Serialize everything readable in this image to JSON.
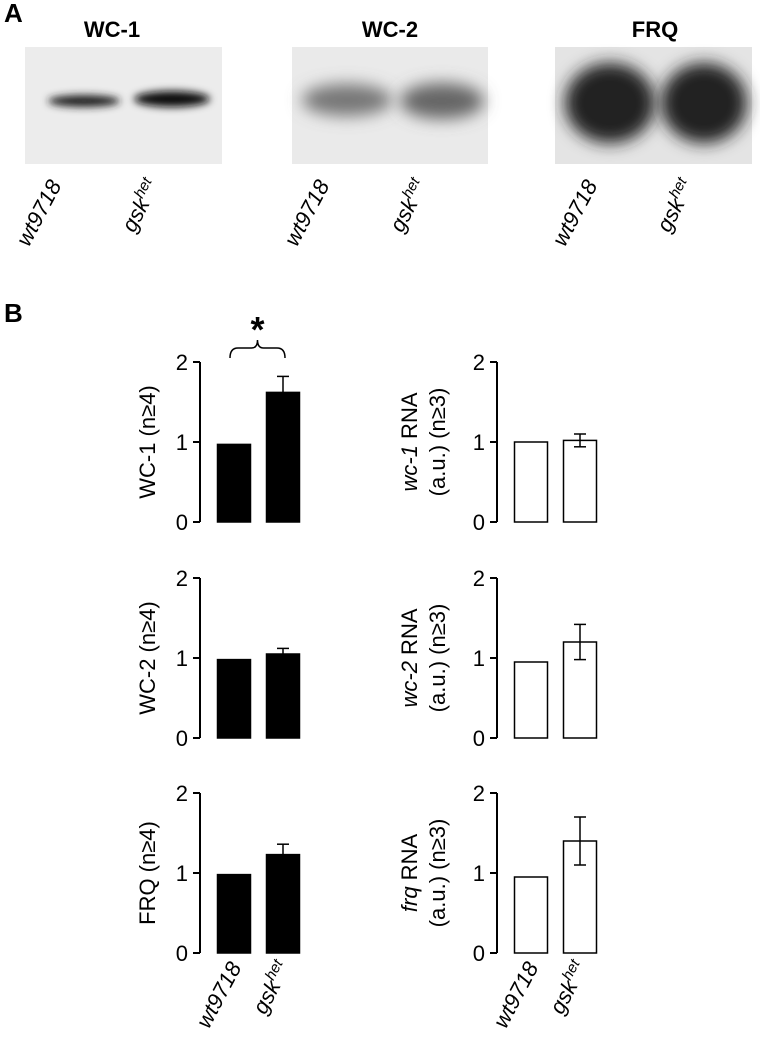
{
  "panel_a": {
    "label": "A",
    "blots": [
      {
        "title": "WC-1"
      },
      {
        "title": "WC-2"
      },
      {
        "title": "FRQ"
      }
    ],
    "lanes": [
      {
        "text": "wt9718"
      },
      {
        "text": "gsk",
        "sup": "het"
      }
    ]
  },
  "panel_b": {
    "label": "B"
  },
  "chart_data": [
    {
      "type": "bar",
      "ylabel": "WC-1 (n≥4)",
      "categories": [
        null,
        null
      ],
      "values": [
        0.97,
        1.62
      ],
      "errors": [
        null,
        0.2
      ],
      "color": "#000000",
      "ylim": [
        0,
        2
      ],
      "yticks": [
        0,
        1,
        2
      ],
      "annotation": "*"
    },
    {
      "type": "bar",
      "ylabel_italic": "wc-1",
      "ylabel": "RNA",
      "ylabel_line2": "(a.u.) (n≥3)",
      "categories": [
        null,
        null
      ],
      "values": [
        1.0,
        1.02
      ],
      "errors": [
        null,
        0.08
      ],
      "color": "#ffffff",
      "ylim": [
        0,
        2
      ],
      "yticks": [
        0,
        1,
        2
      ]
    },
    {
      "type": "bar",
      "ylabel": "WC-2 (n≥4)",
      "categories": [
        null,
        null
      ],
      "values": [
        0.98,
        1.05
      ],
      "errors": [
        null,
        0.07
      ],
      "color": "#000000",
      "ylim": [
        0,
        2
      ],
      "yticks": [
        0,
        1,
        2
      ]
    },
    {
      "type": "bar",
      "ylabel_italic": "wc-2",
      "ylabel": "RNA",
      "ylabel_line2": "(a.u.) (n≥3)",
      "categories": [
        null,
        null
      ],
      "values": [
        0.95,
        1.2
      ],
      "errors": [
        null,
        0.22
      ],
      "color": "#ffffff",
      "ylim": [
        0,
        2
      ],
      "yticks": [
        0,
        1,
        2
      ]
    },
    {
      "type": "bar",
      "ylabel": "FRQ (n≥4)",
      "categories": [
        "wt9718",
        "gsk"
      ],
      "category_superscripts": [
        null,
        "het"
      ],
      "values": [
        0.98,
        1.23
      ],
      "errors": [
        null,
        0.13
      ],
      "color": "#000000",
      "ylim": [
        0,
        2
      ],
      "yticks": [
        0,
        1,
        2
      ]
    },
    {
      "type": "bar",
      "ylabel_italic": "frq",
      "ylabel": "RNA",
      "ylabel_line2": "(a.u.) (n≥3)",
      "categories": [
        "wt9718",
        "gsk"
      ],
      "category_superscripts": [
        null,
        "het"
      ],
      "values": [
        0.95,
        1.4
      ],
      "errors": [
        null,
        0.3
      ],
      "color": "#ffffff",
      "ylim": [
        0,
        2
      ],
      "yticks": [
        0,
        1,
        2
      ]
    }
  ]
}
